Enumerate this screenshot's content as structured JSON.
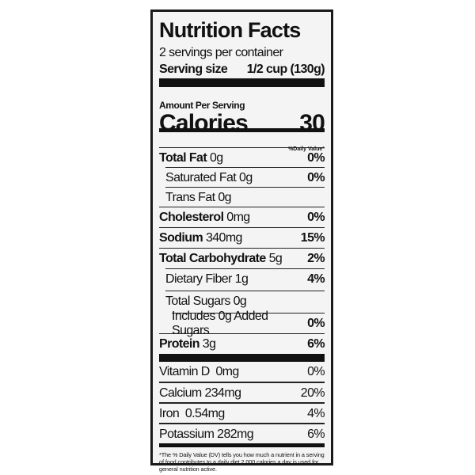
{
  "title": "Nutrition Facts",
  "servings_per_container": "2 servings per container",
  "serving_size": {
    "label": "Serving size",
    "value": "1/2 cup (130g)"
  },
  "amount_per_serving": "Amount Per Serving",
  "calories": {
    "label": "Calories",
    "value": "30"
  },
  "daily_value_header": "%Daily Value*",
  "nutrients": [
    {
      "name": "Total Fat",
      "amount": "0g",
      "dv": "0%"
    },
    {
      "name": "Saturated Fat",
      "amount": "0g",
      "dv": "0%"
    },
    {
      "name": "Trans Fat",
      "amount": "0g",
      "dv": ""
    },
    {
      "name": "Cholesterol",
      "amount": "0mg",
      "dv": "0%"
    },
    {
      "name": "Sodium",
      "amount": "340mg",
      "dv": "15%"
    },
    {
      "name": "Total Carbohydrate",
      "amount": "5g",
      "dv": "2%"
    },
    {
      "name": "Dietary Fiber",
      "amount": "1g",
      "dv": "4%"
    },
    {
      "name": "Total Sugars",
      "amount": "0g",
      "dv": ""
    },
    {
      "name": "Includes",
      "amount": "0g Added Sugars",
      "dv": "0%"
    },
    {
      "name": "Protein",
      "amount": "3g",
      "dv": "6%"
    }
  ],
  "vitamins": [
    {
      "name": "Vitamin D",
      "amount": "0mg",
      "dv": "0%"
    },
    {
      "name": "Calcium",
      "amount": "234mg",
      "dv": "20%"
    },
    {
      "name": "Iron",
      "amount": "0.54mg",
      "dv": "4%"
    },
    {
      "name": "Potassium",
      "amount": "282mg",
      "dv": "6%"
    }
  ],
  "footnote": "*The % Daily Value (DV) tells you how much a nutrient in a serving of food contributes to a daily diet 2,000 calories a day is used for general nutrition active."
}
